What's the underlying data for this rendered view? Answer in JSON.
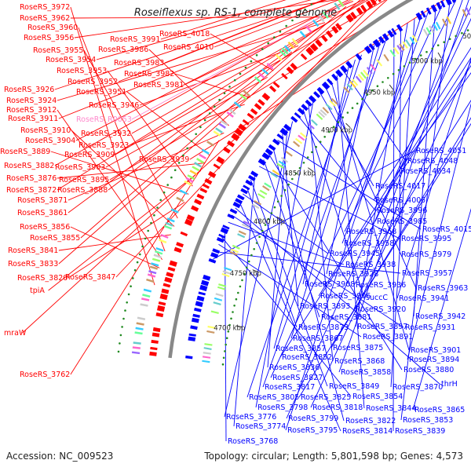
{
  "title": "Roseiflexus sp. RS-1, complete genome",
  "accession": "Accession: NC_009523",
  "footer": "Topology: circular; Length: 5,801,598 bp; Genes: 4,573",
  "colors": {
    "forward": "#ff0000",
    "reverse": "#0000ff",
    "rna_label": "#ff88cc",
    "backbone": "#888888",
    "gc_dots": "#228b22"
  },
  "ticks": [
    "5150 kbp",
    "5100 kbp",
    "5050 kbp",
    "5000 kbp",
    "4950 kbp",
    "4900 kbp",
    "4850 kbp",
    "4800 kbp",
    "4750 kbp",
    "4700 kbp"
  ],
  "labels_forward": [
    "RoseRS_3972",
    "RoseRS_3962",
    "RoseRS_3960",
    "RoseRS_3956",
    "RoseRS_3955",
    "RoseRS_3954",
    "RoseRS_3953",
    "RoseRS_3952",
    "RoseRS_3951",
    "RoseRS_3991",
    "RoseRS_3986",
    "RoseRS_3983",
    "RoseRS_3982",
    "RoseRS_3981",
    "RoseRS_4018",
    "RoseRS_4010",
    "RoseRS_3946",
    "RoseRS_3926",
    "RoseRS_3924",
    "RoseRS_3912",
    "RoseRS_3911",
    "RoseRS_3910",
    "RoseRS_3904",
    "RoseRS_3889",
    "RoseRS_3882",
    "RoseRS_3876",
    "RoseRS_3872",
    "RoseRS_3871",
    "RoseRS_3932",
    "RoseRS_3923",
    "RoseRS_3909",
    "RoseRS_3903",
    "RoseRS_3895",
    "RoseRS_3888",
    "RoseRS_3939",
    "RoseRS_3861",
    "RoseRS_3856",
    "RoseRS_3855",
    "RoseRS_3841",
    "RoseRS_3833",
    "RoseRS_3820",
    "RoseRS_3847",
    "tpiA",
    "mraW",
    "RoseRS_3762"
  ],
  "labels_rna": [
    "RoseRS_R0053"
  ],
  "labels_reverse": [
    "RoseRS_4051",
    "RoseRS_4048",
    "RoseRS_4034",
    "RoseRS_4017",
    "RoseRS_4005",
    "RoseRS_3996",
    "RoseRS_3985",
    "RoseRS_4015",
    "RoseRS_3968",
    "RoseRS_3995",
    "RoseRS_3958",
    "RoseRS_3945",
    "RoseRS_3979",
    "RoseRS_3938",
    "RoseRS_3928",
    "RoseRS_3957",
    "RoseRS_3908",
    "RoseRS_3936",
    "RoseRS_3963",
    "RoseRS_3906",
    "succC",
    "RoseRS_3941",
    "RoseRS_3893",
    "RoseRS_3920",
    "RoseRS_3881",
    "RoseRS_3942",
    "RoseRS_3873",
    "RoseRS_3897",
    "RoseRS_3931",
    "RoseRS_3867",
    "RoseRS_3891",
    "RoseRS_3857",
    "RoseRS_3875",
    "RoseRS_3901",
    "RoseRS_3852",
    "RoseRS_3868",
    "RoseRS_3894",
    "RoseRS_3836",
    "RoseRS_3858",
    "RoseRS_3880",
    "RoseRS_3827",
    "RoseRS_3849",
    "RoseRS_3870",
    "thrH",
    "RoseRS_3817",
    "RoseRS_3854",
    "RoseRS_3805",
    "RoseRS_3825",
    "RoseRS_3844",
    "RoseRS_3865",
    "RoseRS_3798",
    "RoseRS_3818",
    "RoseRS_3776",
    "RoseRS_3799",
    "RoseRS_3822",
    "RoseRS_3853",
    "RoseRS_3774",
    "RoseRS_3795",
    "RoseRS_3814",
    "RoseRS_3839",
    "RoseRS_3768"
  ]
}
